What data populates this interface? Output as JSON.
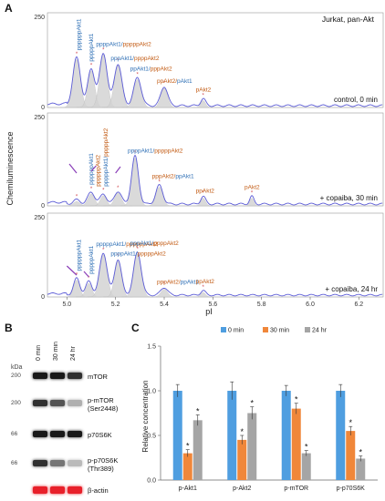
{
  "figure": {
    "panel_a_letter": "A",
    "panel_b_letter": "B",
    "panel_c_letter": "C"
  },
  "panel_a": {
    "y_axis_label": "Chemiluminescence",
    "x_axis_label": "pI",
    "x_ticks": [
      "5.0",
      "5.2",
      "5.4",
      "5.6",
      "5.8",
      "6.0",
      "6.2"
    ],
    "y_top_tick": "250",
    "y_zero_tick": "0",
    "top_right_label": "Jurkat, pan-Akt",
    "peak_markers": "*",
    "traces": [
      {
        "condition": "control, 0 min",
        "peaks": [
          {
            "pos": 5.04,
            "h": 0.55,
            "w": 0.022,
            "shaded": true
          },
          {
            "pos": 5.1,
            "h": 0.42,
            "w": 0.02,
            "shaded": true
          },
          {
            "pos": 5.15,
            "h": 0.6,
            "w": 0.022,
            "shaded": true
          },
          {
            "pos": 5.21,
            "h": 0.48,
            "w": 0.022,
            "shaded": true
          },
          {
            "pos": 5.29,
            "h": 0.32,
            "w": 0.022,
            "shaded": true
          },
          {
            "pos": 5.4,
            "h": 0.22,
            "w": 0.02,
            "shaded": true
          },
          {
            "pos": 5.56,
            "h": 0.08,
            "w": 0.014,
            "shaded": true
          }
        ],
        "annotations": [
          {
            "text_blue": "ppppppAkt1",
            "text_orange": "",
            "pos": 5.05,
            "vertical": true
          },
          {
            "text_blue": "pppppAkt1",
            "text_orange": "",
            "pos": 5.1,
            "vertical": true
          },
          {
            "text_blue": "ppppAkt1/",
            "text_orange": "pppppAkt2",
            "pos": 5.15,
            "vertical": false
          },
          {
            "text_blue": "pppAkt1/",
            "text_orange": "ppppAkt2",
            "pos": 5.21,
            "vertical": false
          },
          {
            "text_blue": "ppAkt1/",
            "text_orange": "pppAkt2",
            "pos": 5.29,
            "vertical": false
          },
          {
            "text_blue": "pAkt1",
            "text_orange": "ppAkt2/",
            "pos": 5.4,
            "vertical": false,
            "orange_first": true
          },
          {
            "text_blue": "",
            "text_orange": "pAkt2",
            "pos": 5.56,
            "vertical": false
          }
        ]
      },
      {
        "condition": "+ copaiba, 30 min",
        "peaks": [
          {
            "pos": 5.04,
            "h": 0.05,
            "w": 0.02,
            "shaded": true
          },
          {
            "pos": 5.1,
            "h": 0.14,
            "w": 0.02,
            "shaded": true
          },
          {
            "pos": 5.15,
            "h": 0.12,
            "w": 0.018,
            "shaded": true
          },
          {
            "pos": 5.21,
            "h": 0.15,
            "w": 0.02,
            "shaded": true
          },
          {
            "pos": 5.28,
            "h": 0.56,
            "w": 0.02,
            "shaded": true
          },
          {
            "pos": 5.38,
            "h": 0.22,
            "w": 0.02,
            "shaded": true
          },
          {
            "pos": 5.56,
            "h": 0.09,
            "w": 0.014,
            "shaded": true
          },
          {
            "pos": 5.76,
            "h": 0.09,
            "w": 0.012,
            "shaded": true
          }
        ],
        "annotations": [
          {
            "text_blue": "ppppppAkt1",
            "text_orange": "",
            "pos": 5.1,
            "vertical": true
          },
          {
            "text_blue": "pppppAkt1/",
            "text_orange": "pppppAkt2",
            "pos": 5.16,
            "vertical": true
          },
          {
            "text_blue": "",
            "text_orange": "ppppppAkt2",
            "pos": 5.15,
            "vertical": true
          },
          {
            "text_blue": "ppppAkt1/",
            "text_orange": "pppppAkt2",
            "pos": 5.28,
            "vertical": false
          },
          {
            "text_blue": "ppAkt1",
            "text_orange": "pppAkt2/",
            "pos": 5.38,
            "vertical": false,
            "orange_first": true
          },
          {
            "text_blue": "",
            "text_orange": "ppAkt2",
            "pos": 5.56,
            "vertical": false
          },
          {
            "text_blue": "",
            "text_orange": "pAkt2",
            "pos": 5.76,
            "vertical": false
          }
        ]
      },
      {
        "condition": "+ copaiba, 24 hr",
        "peaks": [
          {
            "pos": 5.04,
            "h": 0.22,
            "w": 0.018,
            "shaded": true
          },
          {
            "pos": 5.09,
            "h": 0.18,
            "w": 0.018,
            "shaded": true
          },
          {
            "pos": 5.15,
            "h": 0.55,
            "w": 0.022,
            "shaded": true
          },
          {
            "pos": 5.21,
            "h": 0.47,
            "w": 0.02,
            "shaded": true
          },
          {
            "pos": 5.29,
            "h": 0.56,
            "w": 0.022,
            "shaded": true
          },
          {
            "pos": 5.4,
            "h": 0.1,
            "w": 0.02,
            "shaded": true
          },
          {
            "pos": 5.56,
            "h": 0.06,
            "w": 0.014,
            "shaded": true
          }
        ],
        "annotations": [
          {
            "text_blue": "ppppppAkt1",
            "text_orange": "",
            "pos": 5.05,
            "vertical": true
          },
          {
            "text_blue": "pppppAkt1",
            "text_orange": "",
            "pos": 5.1,
            "vertical": true
          },
          {
            "text_blue": "pppppAkt1/",
            "text_orange": "ppppppAkt2",
            "pos": 5.15,
            "vertical": false
          },
          {
            "text_blue": "ppppAkt1/",
            "text_orange": "pppppAkt2",
            "pos": 5.21,
            "vertical": false
          },
          {
            "text_blue": "pppAkt1/",
            "text_orange": "ppppAkt2",
            "pos": 5.29,
            "vertical": false
          },
          {
            "text_blue": "ppAkt1",
            "text_orange": "pppAkt2/",
            "pos": 5.4,
            "vertical": false,
            "orange_first": true
          },
          {
            "text_blue": "",
            "text_orange": "ppAkt2",
            "pos": 5.56,
            "vertical": false
          }
        ]
      }
    ]
  },
  "panel_b": {
    "lane_labels": [
      "0 min",
      "30 min",
      "24 hr"
    ],
    "kda_label": "kDa",
    "kda_ticks": [
      "200",
      "200",
      "66",
      "66"
    ],
    "bands": [
      {
        "name": "mTOR",
        "intensity": [
          1.0,
          1.0,
          0.9
        ]
      },
      {
        "name": "p-mTOR\n(Ser2448)",
        "intensity": [
          0.9,
          0.75,
          0.35
        ]
      },
      {
        "name": "p70S6K",
        "intensity": [
          1.0,
          1.0,
          1.0
        ]
      },
      {
        "name": "p-p70S6K\n(Thr389)",
        "intensity": [
          0.9,
          0.6,
          0.3
        ]
      },
      {
        "name": "β-actin",
        "intensity": [
          1.0,
          1.0,
          1.0
        ],
        "red": true
      }
    ]
  },
  "panel_c": {
    "chart_data": {
      "type": "bar",
      "ylabel": "Relative concentration",
      "xlabel": "",
      "ylim": [
        0,
        1.5
      ],
      "yticks": [
        "0.0",
        "0.5",
        "1.0",
        "1.5"
      ],
      "categories": [
        "p-Akt1",
        "p-Akt2",
        "p-mTOR",
        "p-p70S6K"
      ],
      "legend_position": "top",
      "series": [
        {
          "name": "0  min",
          "color": "#4f9ee0",
          "values": [
            1.0,
            1.0,
            1.0,
            1.0
          ],
          "errors": [
            0.07,
            0.1,
            0.06,
            0.07
          ],
          "stars": [
            "",
            "",
            "",
            ""
          ]
        },
        {
          "name": "30 min",
          "color": "#f0873a",
          "values": [
            0.3,
            0.45,
            0.8,
            0.55
          ],
          "errors": [
            0.04,
            0.05,
            0.06,
            0.05
          ],
          "stars": [
            "*",
            "*",
            "*",
            "*"
          ]
        },
        {
          "name": "24 hr",
          "color": "#a5a5a5",
          "values": [
            0.67,
            0.75,
            0.3,
            0.24
          ],
          "errors": [
            0.06,
            0.07,
            0.03,
            0.03
          ],
          "stars": [
            "*",
            "*",
            "*",
            "*"
          ]
        }
      ]
    }
  },
  "colors": {
    "trace": "#5b5bd6",
    "shade": "#d4d4d4",
    "blue_text": "#2e6fb5",
    "orange_text": "#c25a12",
    "arrow": "#8a3fb8",
    "star": "#d0454c",
    "beta_actin": "#e8202a"
  }
}
